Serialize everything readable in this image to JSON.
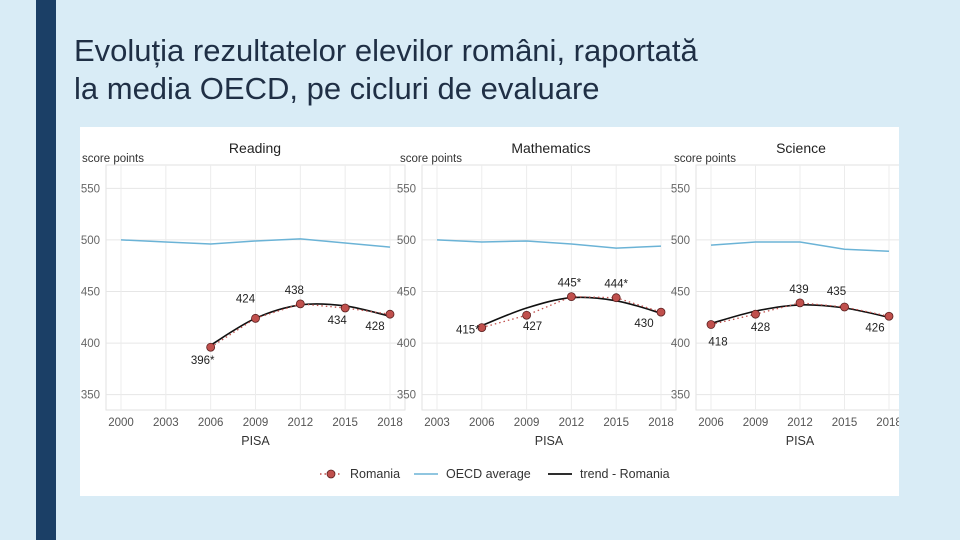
{
  "slide": {
    "title_line1": "Evoluția rezultatelor elevilor români, raportată",
    "title_line2": "la media OECD, pe cicluri de evaluare"
  },
  "colors": {
    "background": "#d9ecf6",
    "accent_bar": "#1b3f66",
    "title_text": "#1f2f45",
    "romania_points": "#c0504d",
    "oecd_line": "#6bb3d6",
    "trend_line": "#111111"
  },
  "legend": {
    "romania": "Romania",
    "oecd": "OECD average",
    "trend": "trend - Romania"
  },
  "chart_data": [
    {
      "type": "line",
      "title": "Reading",
      "ylabel": "score points",
      "xlabel": "PISA",
      "ylim": [
        340,
        560
      ],
      "yticks": [
        350,
        400,
        450,
        500,
        550
      ],
      "x": [
        2000,
        2003,
        2006,
        2009,
        2012,
        2015,
        2018
      ],
      "series": [
        {
          "name": "Romania",
          "x": [
            2006,
            2009,
            2012,
            2015,
            2018
          ],
          "values": [
            396,
            424,
            438,
            434,
            428
          ],
          "labels": [
            "396*",
            "424",
            "438",
            "434",
            "428"
          ]
        },
        {
          "name": "OECD average",
          "x": [
            2000,
            2003,
            2006,
            2009,
            2012,
            2015,
            2018
          ],
          "values": [
            500,
            498,
            496,
            499,
            501,
            497,
            493
          ]
        },
        {
          "name": "trend - Romania",
          "x": [
            2006,
            2009,
            2012,
            2015,
            2018
          ],
          "values": [
            398,
            424,
            437,
            436,
            426
          ]
        }
      ],
      "grid": true,
      "legend_position": "bottom"
    },
    {
      "type": "line",
      "title": "Mathematics",
      "ylabel": "score points",
      "xlabel": "PISA",
      "ylim": [
        340,
        560
      ],
      "yticks": [
        350,
        400,
        450,
        500,
        550
      ],
      "x": [
        2003,
        2006,
        2009,
        2012,
        2015,
        2018
      ],
      "series": [
        {
          "name": "Romania",
          "x": [
            2006,
            2009,
            2012,
            2015,
            2018
          ],
          "values": [
            415,
            427,
            445,
            444,
            430
          ],
          "labels": [
            "415*",
            "427",
            "445*",
            "444*",
            "430"
          ]
        },
        {
          "name": "OECD average",
          "x": [
            2003,
            2006,
            2009,
            2012,
            2015,
            2018
          ],
          "values": [
            500,
            498,
            499,
            496,
            492,
            494
          ]
        },
        {
          "name": "trend - Romania",
          "x": [
            2006,
            2009,
            2012,
            2015,
            2018
          ],
          "values": [
            417,
            434,
            444,
            441,
            429
          ]
        }
      ],
      "grid": true,
      "legend_position": "bottom"
    },
    {
      "type": "line",
      "title": "Science",
      "ylabel": "score points",
      "xlabel": "PISA",
      "ylim": [
        340,
        560
      ],
      "yticks": [
        350,
        400,
        450,
        500,
        550
      ],
      "x": [
        2006,
        2009,
        2012,
        2015,
        2018
      ],
      "series": [
        {
          "name": "Romania",
          "x": [
            2006,
            2009,
            2012,
            2015,
            2018
          ],
          "values": [
            418,
            428,
            439,
            435,
            426
          ],
          "labels": [
            "418",
            "428",
            "439",
            "435",
            "426"
          ]
        },
        {
          "name": "OECD average",
          "x": [
            2006,
            2009,
            2012,
            2015,
            2018
          ],
          "values": [
            495,
            498,
            498,
            491,
            489
          ]
        },
        {
          "name": "trend - Romania",
          "x": [
            2006,
            2009,
            2012,
            2015,
            2018
          ],
          "values": [
            419,
            431,
            437,
            434,
            425
          ]
        }
      ],
      "grid": true,
      "legend_position": "bottom"
    }
  ]
}
